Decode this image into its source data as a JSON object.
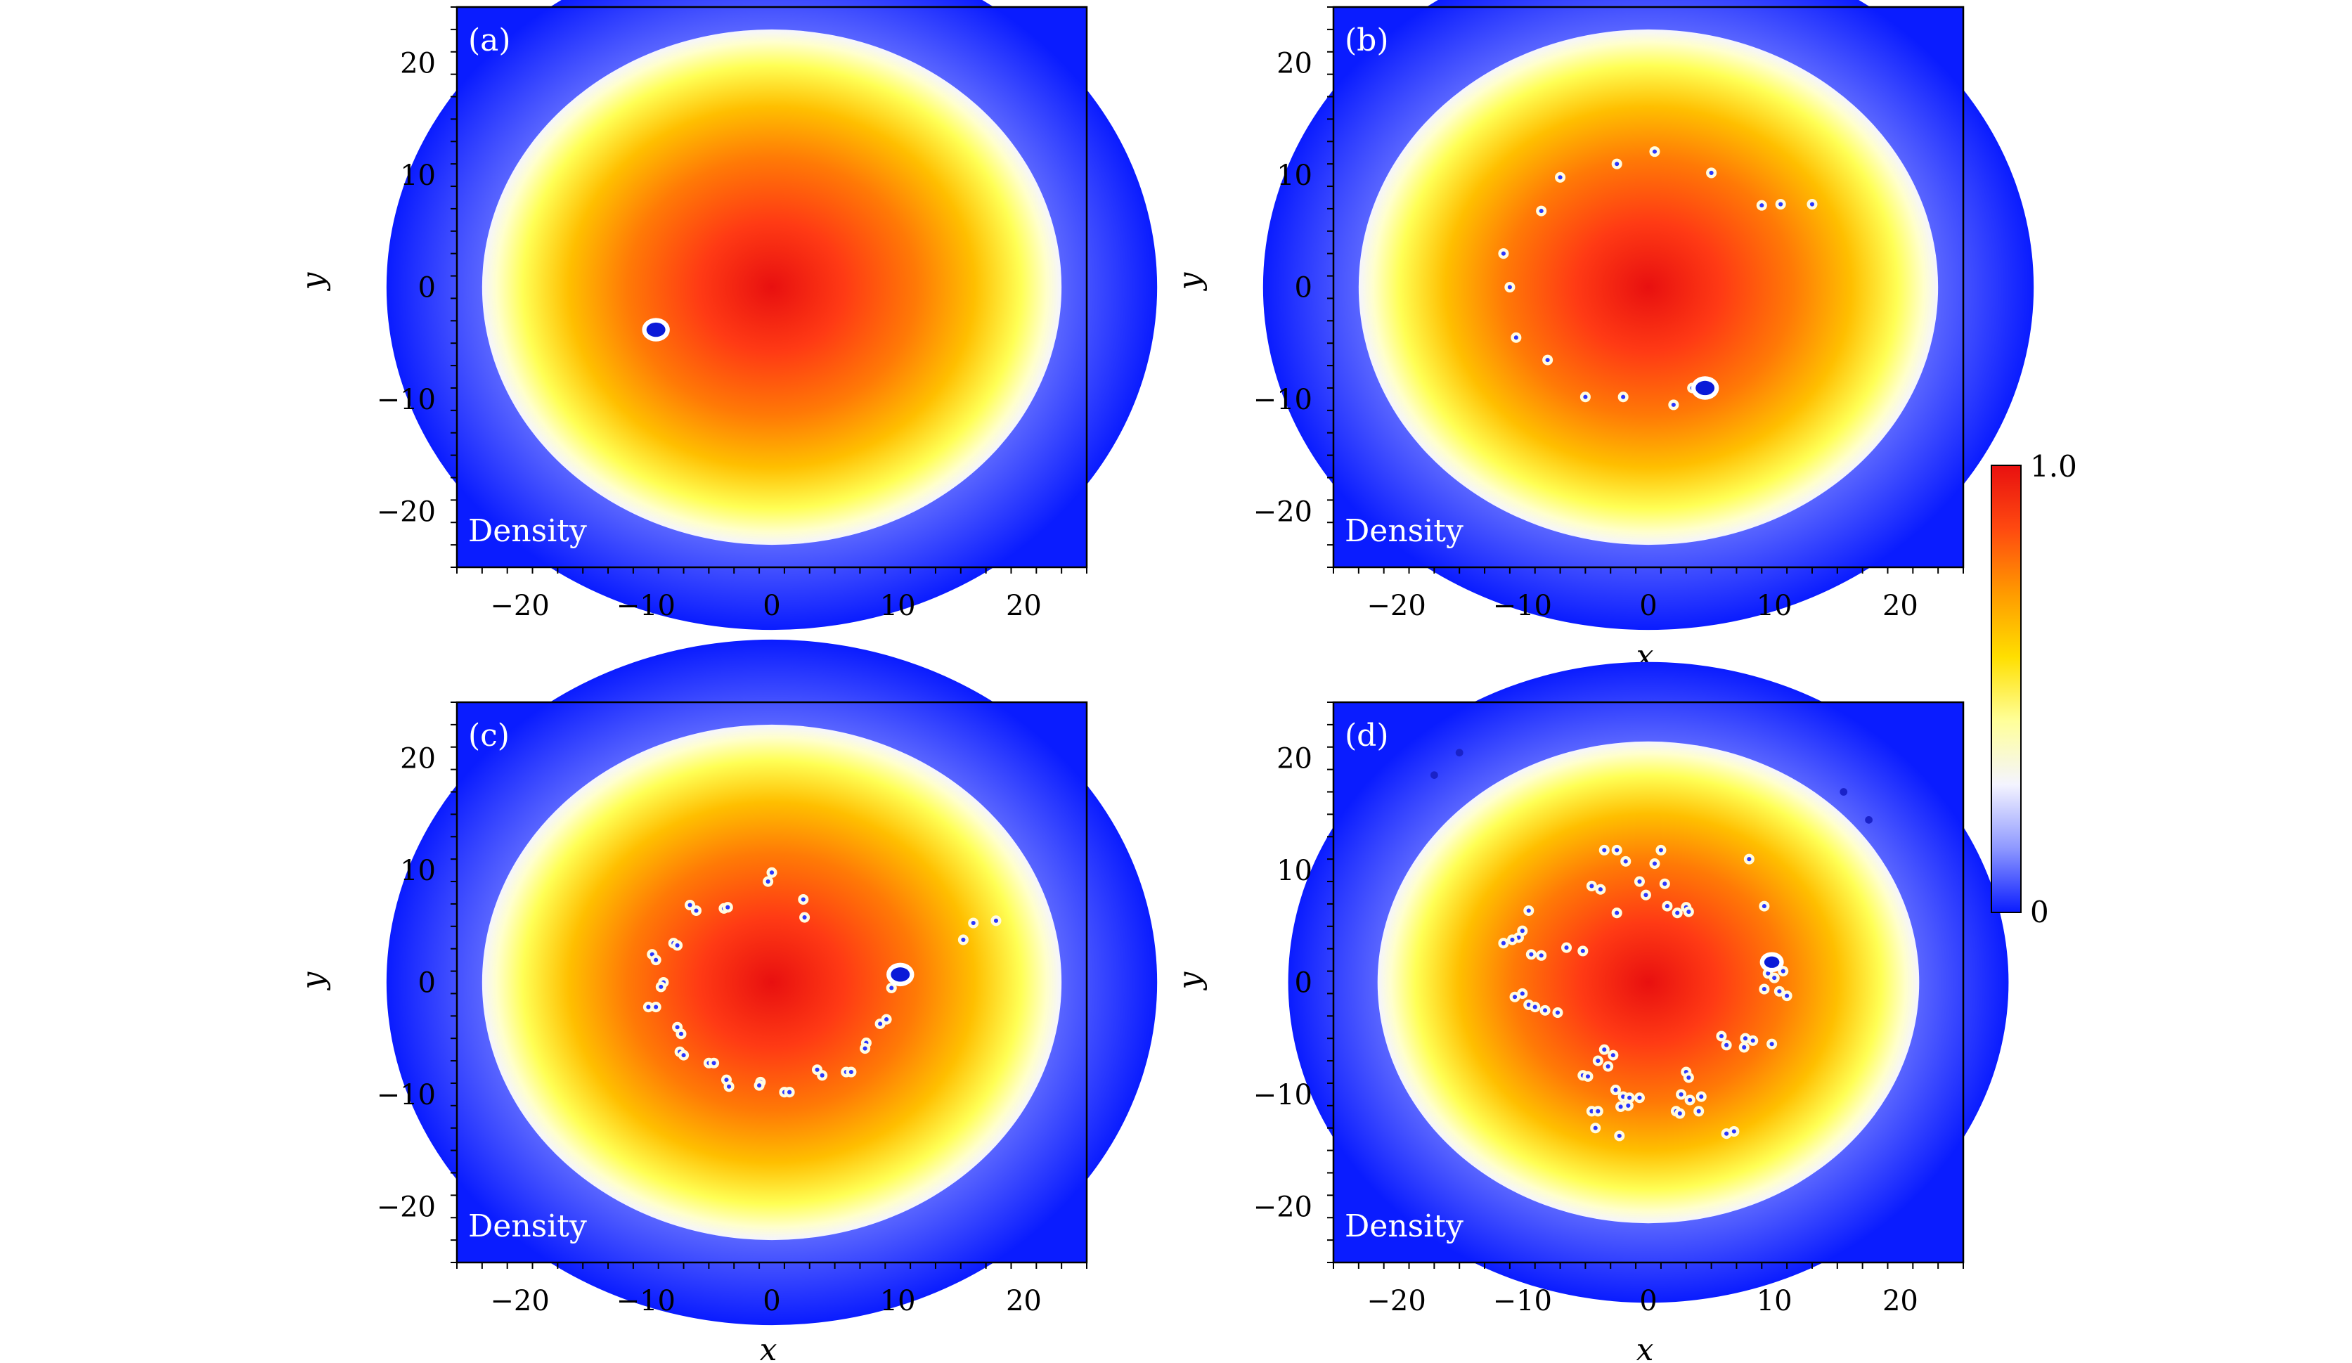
{
  "figure": {
    "panels": [
      {
        "tag": "(a)",
        "field_label": "Density"
      },
      {
        "tag": "(b)",
        "field_label": "Density"
      },
      {
        "tag": "(c)",
        "field_label": "Density"
      },
      {
        "tag": "(d)",
        "field_label": "Density"
      }
    ],
    "colorbar": {
      "max_label": "1.0",
      "min_label": "0",
      "colors": [
        "#0a1cff",
        "#8e98ff",
        "#f4f4ff",
        "#ffff99",
        "#ffdf00",
        "#ff9a00",
        "#ff4a10",
        "#e81010"
      ]
    },
    "background_color": "#0a1cff"
  },
  "chart_data": [
    {
      "type": "heatmap",
      "panel": "(a)",
      "xlabel": "x",
      "ylabel": "y",
      "xlim": [
        -25,
        25
      ],
      "ylim": [
        -25,
        25
      ],
      "xticks": [
        -20,
        -10,
        0,
        10,
        20
      ],
      "yticks": [
        -20,
        -10,
        0,
        10,
        20
      ],
      "xtick_labels": [
        "−20",
        "−10",
        "0",
        "10",
        "20"
      ],
      "ytick_labels": [
        "−20",
        "−10",
        "0",
        "10",
        "20"
      ],
      "cloud_radius": 23,
      "large_vortex": {
        "x": -9.2,
        "y": -3.8,
        "r": 0.75
      },
      "vortices": []
    },
    {
      "type": "heatmap",
      "panel": "(b)",
      "xlabel": "x",
      "ylabel": "y",
      "xlim": [
        -25,
        25
      ],
      "ylim": [
        -25,
        25
      ],
      "xticks": [
        -20,
        -10,
        0,
        10,
        20
      ],
      "yticks": [
        -20,
        -10,
        0,
        10,
        20
      ],
      "xtick_labels": [
        "−20",
        "−10",
        "0",
        "10",
        "20"
      ],
      "ytick_labels": [
        "−20",
        "−10",
        "0",
        "10",
        "20"
      ],
      "cloud_radius": 23,
      "large_vortex": {
        "x": 4.5,
        "y": -9.0,
        "r": 0.75
      },
      "vortices": [
        [
          0.5,
          12.1
        ],
        [
          -2.5,
          11
        ],
        [
          5,
          10.2
        ],
        [
          -7,
          9.8
        ],
        [
          9,
          7.3
        ],
        [
          10.5,
          7.4
        ],
        [
          13,
          7.4
        ],
        [
          -8.5,
          6.8
        ],
        [
          -11.5,
          3
        ],
        [
          -11,
          0
        ],
        [
          -10.5,
          -4.5
        ],
        [
          -8,
          -6.5
        ],
        [
          -5,
          -9.8
        ],
        [
          -2,
          -9.8
        ],
        [
          2,
          -10.5
        ],
        [
          3.5,
          -9
        ]
      ]
    },
    {
      "type": "heatmap",
      "panel": "(c)",
      "xlabel": "x",
      "ylabel": "y",
      "xlim": [
        -25,
        25
      ],
      "ylim": [
        -25,
        25
      ],
      "xticks": [
        -20,
        -10,
        0,
        10,
        20
      ],
      "yticks": [
        -20,
        -10,
        0,
        10,
        20
      ],
      "xtick_labels": [
        "−20",
        "−10",
        "0",
        "10",
        "20"
      ],
      "ytick_labels": [
        "−20",
        "−10",
        "0",
        "10",
        "20"
      ],
      "cloud_radius": 23,
      "large_vortex": {
        "x": 10.2,
        "y": 0.7,
        "r": 0.75
      },
      "vortices": [
        [
          0,
          9.8
        ],
        [
          -0.3,
          9
        ],
        [
          2.5,
          7.4
        ],
        [
          2.6,
          5.8
        ],
        [
          -6.5,
          6.9
        ],
        [
          -6,
          6.4
        ],
        [
          -3.8,
          6.6
        ],
        [
          -3.5,
          6.7
        ],
        [
          -7.8,
          3.5
        ],
        [
          -7.5,
          3.3
        ],
        [
          -9.5,
          2.5
        ],
        [
          -9.2,
          2
        ],
        [
          -8.6,
          0
        ],
        [
          -8.8,
          -0.4
        ],
        [
          -9.8,
          -2.2
        ],
        [
          -9.2,
          -2.2
        ],
        [
          -7.5,
          -4
        ],
        [
          -7.2,
          -4.6
        ],
        [
          -7.3,
          -6.2
        ],
        [
          -7,
          -6.5
        ],
        [
          -5,
          -7.2
        ],
        [
          -4.6,
          -7.2
        ],
        [
          -3.6,
          -8.7
        ],
        [
          -3.4,
          -9.3
        ],
        [
          -0.9,
          -8.9
        ],
        [
          -1,
          -9.2
        ],
        [
          1,
          -9.8
        ],
        [
          1.4,
          -9.8
        ],
        [
          3.6,
          -7.8
        ],
        [
          4,
          -8.3
        ],
        [
          5.9,
          -8
        ],
        [
          6.3,
          -8
        ],
        [
          7.5,
          -5.4
        ],
        [
          7.4,
          -5.9
        ],
        [
          8.6,
          -3.7
        ],
        [
          9.1,
          -3.3
        ],
        [
          9.5,
          -0.5
        ],
        [
          15.2,
          3.8
        ],
        [
          16,
          5.3
        ],
        [
          17.8,
          5.5
        ]
      ]
    },
    {
      "type": "heatmap",
      "panel": "(d)",
      "xlabel": "x",
      "ylabel": "y",
      "xlim": [
        -25,
        25
      ],
      "ylim": [
        -25,
        25
      ],
      "xticks": [
        -20,
        -10,
        0,
        10,
        20
      ],
      "yticks": [
        -20,
        -10,
        0,
        10,
        20
      ],
      "xtick_labels": [
        "−20",
        "−10",
        "0",
        "10",
        "20"
      ],
      "ytick_labels": [
        "−20",
        "−10",
        "0",
        "10",
        "20"
      ],
      "cloud_radius": 21.5,
      "large_vortex": {
        "x": 9.8,
        "y": 1.8,
        "r": 0.6
      },
      "outer_vortices": [
        [
          -17,
          18.5
        ],
        [
          -15,
          20.5
        ],
        [
          15.5,
          17
        ],
        [
          17.5,
          14.5
        ]
      ],
      "vortices": [
        [
          -3.5,
          11.8
        ],
        [
          -2.5,
          11.8
        ],
        [
          1,
          11.8
        ],
        [
          -1.8,
          10.8
        ],
        [
          0.5,
          10.6
        ],
        [
          8,
          11
        ],
        [
          -0.7,
          9
        ],
        [
          1.3,
          8.8
        ],
        [
          -4.5,
          8.6
        ],
        [
          -3.8,
          8.3
        ],
        [
          -0.2,
          7.8
        ],
        [
          -2.5,
          6.2
        ],
        [
          2.3,
          6.2
        ],
        [
          -9.5,
          6.4
        ],
        [
          1.5,
          6.8
        ],
        [
          3,
          6.7
        ],
        [
          3.2,
          6.3
        ],
        [
          9.2,
          6.8
        ],
        [
          -10,
          4.6
        ],
        [
          -10.3,
          4
        ],
        [
          -10.8,
          3.8
        ],
        [
          -11.5,
          3.5
        ],
        [
          -9.3,
          2.5
        ],
        [
          -8.5,
          2.4
        ],
        [
          -6.5,
          3.1
        ],
        [
          -5.2,
          2.8
        ],
        [
          -10,
          -1
        ],
        [
          -10.6,
          -1.3
        ],
        [
          -9.5,
          -2
        ],
        [
          -9,
          -2.2
        ],
        [
          -8.2,
          -2.5
        ],
        [
          -7.2,
          -2.7
        ],
        [
          5.8,
          -4.8
        ],
        [
          6.2,
          -5.6
        ],
        [
          7.7,
          -5
        ],
        [
          8.3,
          -5.2
        ],
        [
          7.6,
          -5.8
        ],
        [
          9.8,
          -5.5
        ],
        [
          -3.5,
          -6
        ],
        [
          -2.8,
          -6.5
        ],
        [
          -4,
          -7
        ],
        [
          -3.2,
          -7.5
        ],
        [
          -5.2,
          -8.3
        ],
        [
          -4.8,
          -8.4
        ],
        [
          3,
          -8
        ],
        [
          3.2,
          -8.5
        ],
        [
          -2.6,
          -9.6
        ],
        [
          -2,
          -10.2
        ],
        [
          -1.5,
          -10.3
        ],
        [
          -0.7,
          -10.3
        ],
        [
          2.6,
          -10
        ],
        [
          3.3,
          -10.5
        ],
        [
          4.2,
          -10.2
        ],
        [
          -2.2,
          -11.1
        ],
        [
          -1.6,
          -11
        ],
        [
          -4.5,
          -11.5
        ],
        [
          -4,
          -11.5
        ],
        [
          2.2,
          -11.5
        ],
        [
          2.5,
          -11.7
        ],
        [
          4,
          -11.5
        ],
        [
          -4.2,
          -13
        ],
        [
          -2.3,
          -13.7
        ],
        [
          6.2,
          -13.5
        ],
        [
          6.8,
          -13.3
        ],
        [
          9.5,
          0.8
        ],
        [
          10,
          0.4
        ],
        [
          10.7,
          1
        ],
        [
          10.4,
          -0.8
        ],
        [
          11,
          -1.2
        ],
        [
          9.2,
          -0.6
        ]
      ]
    }
  ]
}
